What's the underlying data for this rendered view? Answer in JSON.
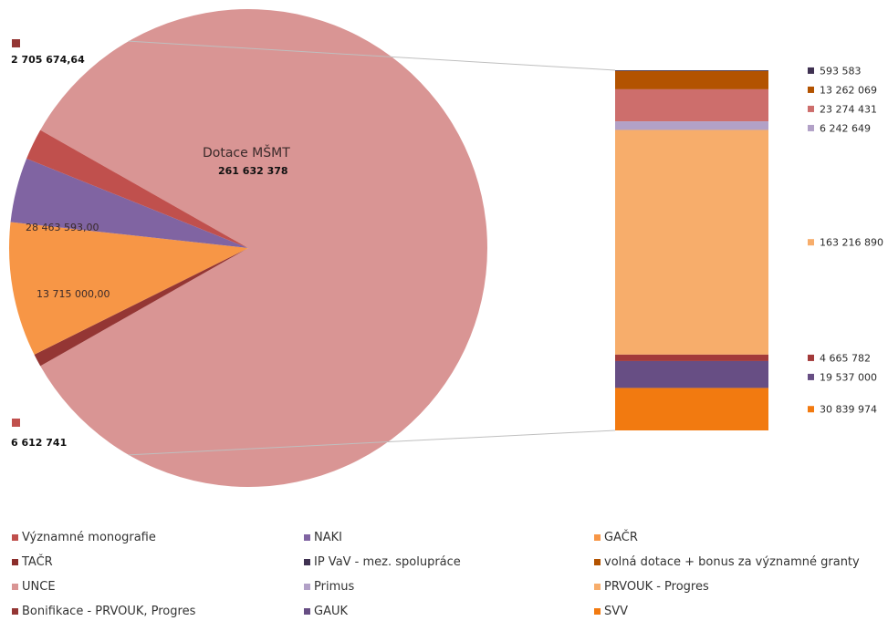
{
  "chart_data": {
    "type": "bar-of-pie",
    "pie": {
      "slices": [
        {
          "name": "Dotace MŠMT",
          "value": 261632378,
          "color": "#d99594"
        },
        {
          "name": "Bonifikace - PRVOUK, Progres",
          "value": 2705674.64,
          "color": "#943634"
        },
        {
          "name": "GAČR",
          "value": 28463593.0,
          "color": "#f79646"
        },
        {
          "name": "NAKI",
          "value": 13715000.0,
          "color": "#8064a2"
        },
        {
          "name": "Významné monografie",
          "value": 6612741,
          "color": "#c0504d"
        }
      ],
      "labels": {
        "main_name": "Dotace MŠMT",
        "main_value": "261 632 378",
        "bonifikace": "2 705 674,64",
        "gacr": "28 463 593,00",
        "naki": "13 715 000,00",
        "monografie": "6 612 741"
      }
    },
    "bar": {
      "segments": [
        {
          "name": "IP VaV - mez. spolupráce",
          "value": 593583,
          "label": "593 583",
          "color": "#3f3151"
        },
        {
          "name": "volná dotace + bonus za významné granty",
          "value": 13262069,
          "label": "13 262 069",
          "color": "#b35300"
        },
        {
          "name": "UNCE",
          "value": 23274431,
          "label": "23 274 431",
          "color": "#cd6e6c"
        },
        {
          "name": "Primus",
          "value": 6242649,
          "label": "6 242 649",
          "color": "#b2a1c7"
        },
        {
          "name": "PRVOUK - Progres",
          "value": 163216890,
          "label": "163 216 890",
          "color": "#f7ad6b"
        },
        {
          "name": "TAČR",
          "value": 4665782,
          "label": "4 665 782",
          "color": "#a33a3a"
        },
        {
          "name": "GAUK",
          "value": 19537000,
          "label": "19 537 000",
          "color": "#674e84"
        },
        {
          "name": "SVV",
          "value": 30839974,
          "label": "30 839 974",
          "color": "#f27a10"
        }
      ]
    },
    "legend": [
      {
        "label": "Významné monografie",
        "color": "#c0504d"
      },
      {
        "label": "NAKI",
        "color": "#8064a2"
      },
      {
        "label": "GAČR",
        "color": "#f79646"
      },
      {
        "label": "TAČR",
        "color": "#8b2d2b"
      },
      {
        "label": "IP VaV - mez. spolupráce",
        "color": "#3f3151"
      },
      {
        "label": "volná dotace + bonus za významné granty",
        "color": "#b35300"
      },
      {
        "label": "UNCE",
        "color": "#d99594"
      },
      {
        "label": "Primus",
        "color": "#b2a1c7"
      },
      {
        "label": "PRVOUK - Progres",
        "color": "#f7ad6b"
      },
      {
        "label": "Bonifikace - PRVOUK, Progres",
        "color": "#943634"
      },
      {
        "label": "GAUK",
        "color": "#674e84"
      },
      {
        "label": "SVV",
        "color": "#f27a10"
      }
    ]
  }
}
